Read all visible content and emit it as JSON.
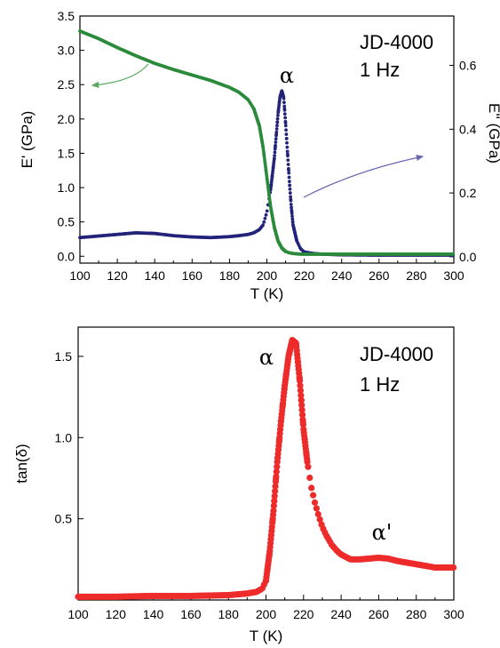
{
  "chart_data": [
    {
      "type": "scatter",
      "xlabel": "T (K)",
      "ylabel": "E' (GPa)",
      "ylabel_right": "E'' (GPa)",
      "xlim": [
        100,
        300
      ],
      "ylim": [
        -0.1,
        3.5
      ],
      "ylim_right": [
        -0.02,
        0.755
      ],
      "xticks": [
        "100",
        "120",
        "140",
        "160",
        "180",
        "200",
        "220",
        "240",
        "260",
        "280",
        "300"
      ],
      "yticks": [
        "0.0",
        "0.5",
        "1.0",
        "1.5",
        "2.0",
        "2.5",
        "3.0",
        "3.5"
      ],
      "yticks_right": [
        "0.0",
        "0.2",
        "0.4",
        "0.6"
      ],
      "annotations": {
        "sample": "JD-4000",
        "freq": "1 Hz",
        "peak": "α"
      },
      "colors": {
        "storage": "#2a8a3a",
        "loss": "#23237a",
        "arrow_left": "#58a85e",
        "arrow_right": "#6868b0"
      },
      "series": [
        {
          "axis": "left",
          "x": [
            100,
            110,
            120,
            130,
            140,
            150,
            160,
            170,
            180,
            185,
            190,
            193,
            196,
            198,
            200,
            202,
            204,
            206,
            208,
            210,
            212,
            214,
            216,
            218,
            220,
            225,
            230,
            240,
            260,
            280,
            300
          ],
          "y": [
            3.28,
            3.17,
            3.04,
            2.92,
            2.81,
            2.72,
            2.64,
            2.56,
            2.46,
            2.39,
            2.28,
            2.15,
            1.9,
            1.58,
            1.15,
            0.72,
            0.42,
            0.22,
            0.12,
            0.07,
            0.05,
            0.04,
            0.035,
            0.03,
            0.03,
            0.03,
            0.03,
            0.03,
            0.03,
            0.03,
            0.03
          ]
        },
        {
          "axis": "right",
          "x": [
            100,
            110,
            120,
            130,
            140,
            150,
            160,
            170,
            180,
            185,
            190,
            193,
            196,
            198,
            200,
            202,
            204,
            205,
            206,
            207,
            208,
            209,
            210,
            211,
            212,
            213,
            214,
            216,
            218,
            220,
            225,
            230,
            240,
            260,
            280,
            300
          ],
          "y": [
            0.06,
            0.065,
            0.07,
            0.075,
            0.073,
            0.066,
            0.062,
            0.06,
            0.063,
            0.066,
            0.07,
            0.075,
            0.085,
            0.1,
            0.14,
            0.21,
            0.31,
            0.38,
            0.45,
            0.5,
            0.52,
            0.5,
            0.42,
            0.33,
            0.24,
            0.16,
            0.1,
            0.05,
            0.025,
            0.015,
            0.01,
            0.008,
            0.006,
            0.005,
            0.005,
            0.005
          ]
        }
      ]
    },
    {
      "type": "scatter",
      "xlabel": "T (K)",
      "ylabel": "tan(δ)",
      "xlim": [
        100,
        300
      ],
      "ylim": [
        0,
        1.68
      ],
      "xticks": [
        "100",
        "120",
        "140",
        "160",
        "180",
        "200",
        "220",
        "240",
        "260",
        "280",
        "300"
      ],
      "yticks": [
        "0.5",
        "1.0",
        "1.5"
      ],
      "annotations": {
        "sample": "JD-4000",
        "freq": "1 Hz",
        "peak": "α",
        "peak2": "α'"
      },
      "colors": {
        "series": "#ee2b2b"
      },
      "series": [
        {
          "x": [
            100,
            120,
            140,
            160,
            180,
            190,
            195,
            198,
            200,
            202,
            204,
            206,
            208,
            210,
            212,
            214,
            216,
            218,
            220,
            222,
            224,
            226,
            228,
            230,
            232,
            235,
            238,
            240,
            245,
            250,
            255,
            260,
            265,
            270,
            275,
            280,
            285,
            290,
            295,
            300
          ],
          "y": [
            0.02,
            0.02,
            0.025,
            0.025,
            0.03,
            0.04,
            0.05,
            0.07,
            0.12,
            0.3,
            0.55,
            0.85,
            1.1,
            1.32,
            1.5,
            1.6,
            1.58,
            1.35,
            1.05,
            0.85,
            0.7,
            0.6,
            0.52,
            0.45,
            0.4,
            0.34,
            0.3,
            0.28,
            0.25,
            0.25,
            0.255,
            0.26,
            0.255,
            0.24,
            0.23,
            0.22,
            0.21,
            0.2,
            0.2,
            0.2
          ]
        }
      ]
    }
  ]
}
